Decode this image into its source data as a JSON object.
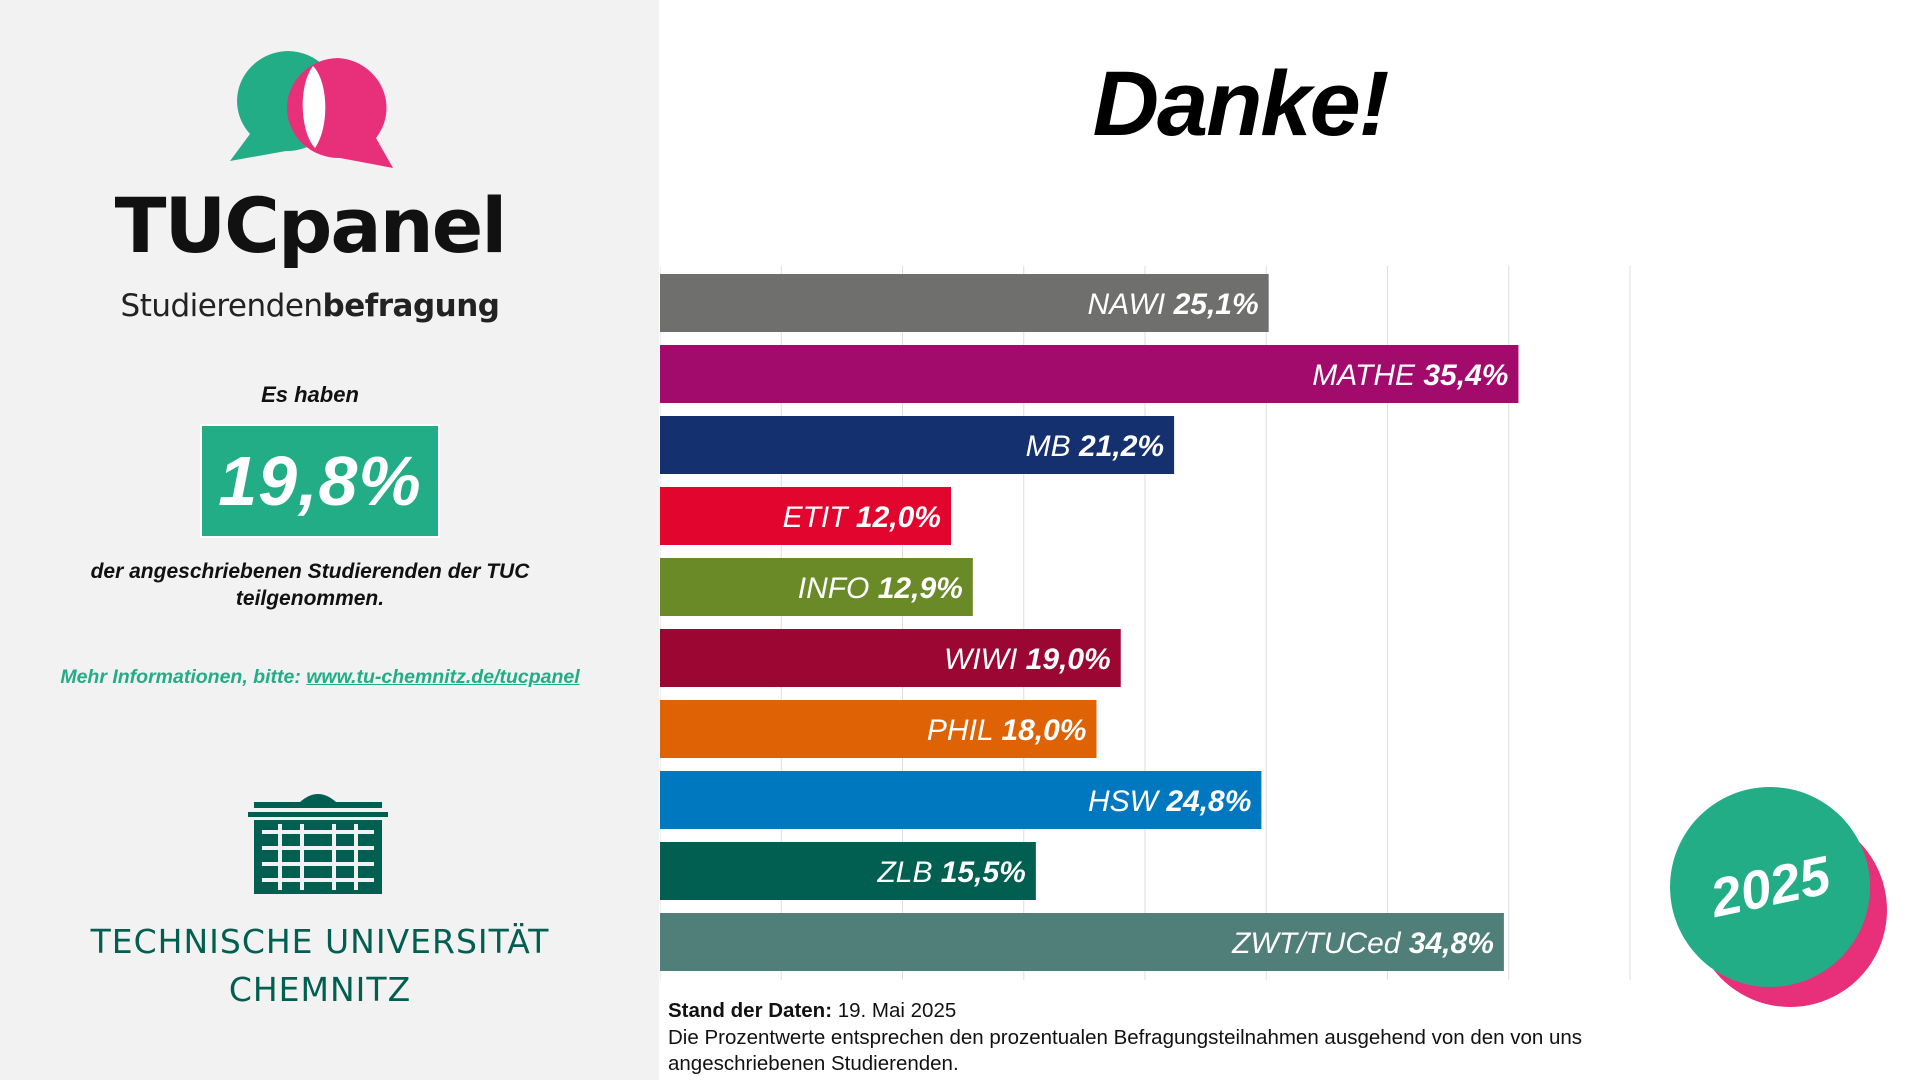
{
  "brand": {
    "title_bold": "TUC",
    "title_rest": "panel",
    "subtitle_normal": "Studierenden",
    "subtitle_bold": "befragung",
    "colors": {
      "green": "#22ad86",
      "pink": "#e8307a"
    }
  },
  "summary": {
    "lead": "Es haben",
    "overall_pct": "19,8%",
    "tail": "der angeschriebenen Studierenden der TUC teilgenommen.",
    "more_info_label": "Mehr Informationen, bitte: ",
    "more_info_link": "www.tu-chemnitz.de/tucpanel"
  },
  "university": {
    "line1": "TECHNISCHE UNIVERSITÄT",
    "line2": "CHEMNITZ",
    "color": "#005f50"
  },
  "page_title": "Danke!",
  "year": "2025",
  "note": {
    "label": "Stand der Daten:",
    "date": " 19. Mai 2025",
    "text": "Die Prozentwerte entsprechen den prozentualen Befragungsteilnahmen ausgehend von den von uns angeschriebenen Studierenden."
  },
  "chart_data": {
    "type": "bar",
    "orientation": "horizontal",
    "title": "",
    "xlabel": "",
    "ylabel": "",
    "xlim": [
      0,
      40
    ],
    "grid": true,
    "unit": "%",
    "categories": [
      "NAWI",
      "MATHE",
      "MB",
      "ETIT",
      "INFO",
      "WIWI",
      "PHIL",
      "HSW",
      "ZLB",
      "ZWT/TUCed"
    ],
    "values": [
      25.1,
      35.4,
      21.2,
      12.0,
      12.9,
      19.0,
      18.0,
      24.8,
      15.5,
      34.8
    ],
    "value_labels": [
      "25,1%",
      "35,4%",
      "21,2%",
      "12,0%",
      "12,9%",
      "19,0%",
      "18,0%",
      "24,8%",
      "15,5%",
      "34,8%"
    ],
    "colors": [
      "#6f6f6e",
      "#a20b6b",
      "#15306f",
      "#e2062f",
      "#6a8a28",
      "#9c0632",
      "#df6305",
      "#0078c0",
      "#005f50",
      "#4f7f78"
    ]
  }
}
